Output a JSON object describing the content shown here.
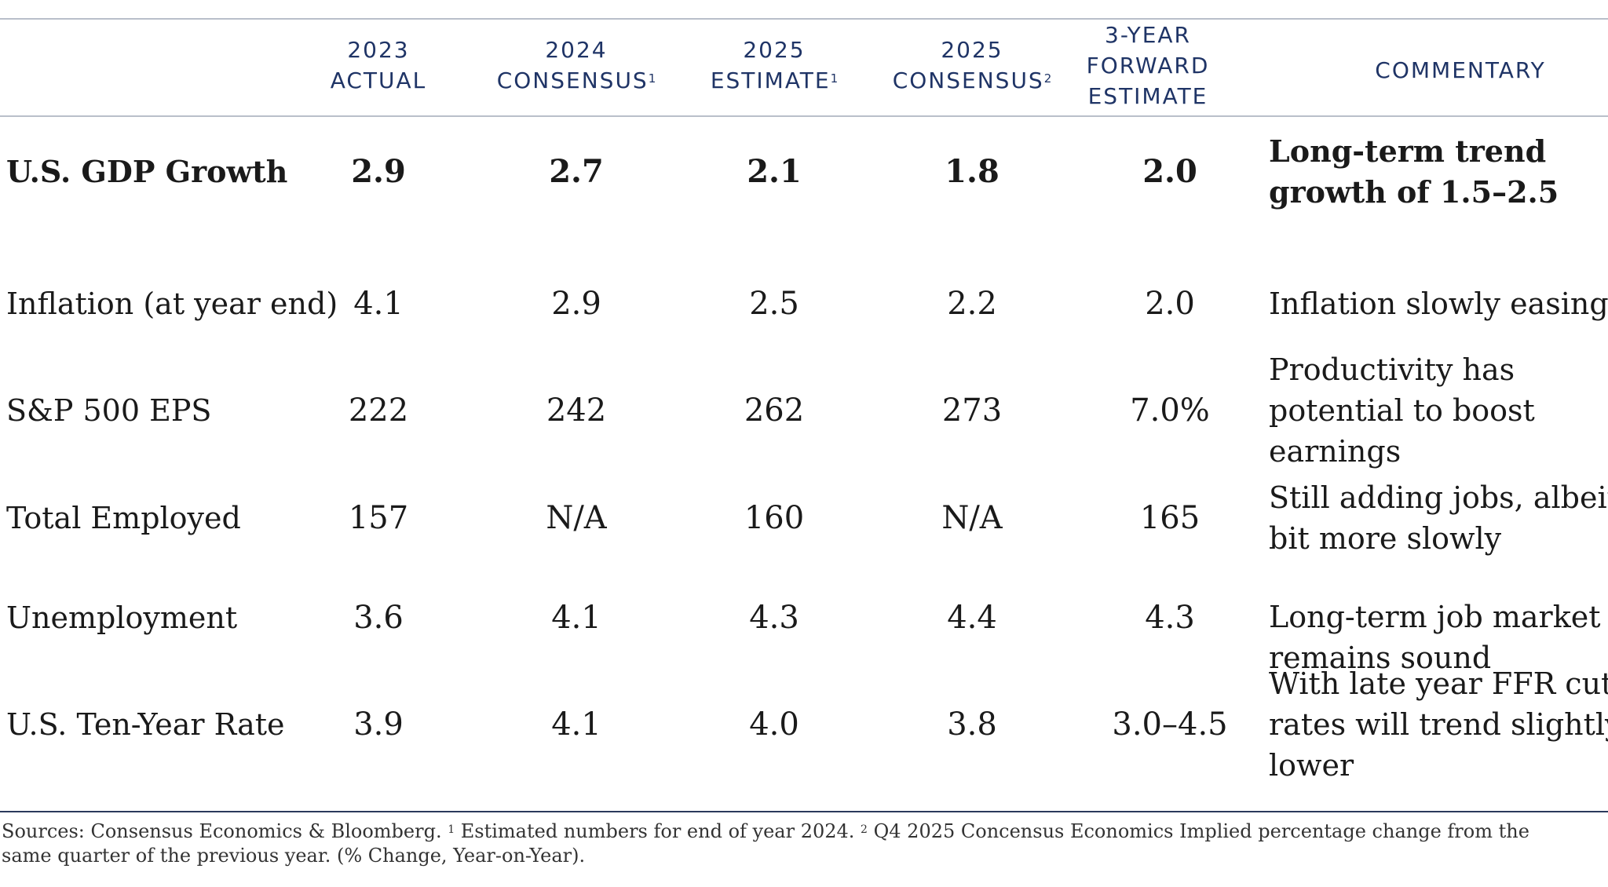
{
  "headers": [
    {
      "lines": [
        "2023",
        "ACTUAL"
      ],
      "sup": ""
    },
    {
      "lines": [
        "2024",
        "CONSENSUS"
      ],
      "sup": "1"
    },
    {
      "lines": [
        "2025",
        "ESTIMATE"
      ],
      "sup": "1"
    },
    {
      "lines": [
        "2025",
        "CONSENSUS"
      ],
      "sup": "2"
    },
    {
      "lines": [
        "3-YEAR",
        "FORWARD",
        "ESTIMATE"
      ],
      "sup": ""
    },
    {
      "lines": [
        "COMMENTARY"
      ],
      "sup": ""
    }
  ],
  "rows": [
    {
      "label": "U.S. GDP Growth",
      "values": [
        "2.9",
        "2.7",
        "2.1",
        "1.8",
        "2.0"
      ],
      "commentary": [
        "Long-term trend",
        "growth of 1.5–2.5"
      ],
      "bold": true
    },
    {
      "label": "Inflation (at year end)",
      "values": [
        "4.1",
        "2.9",
        "2.5",
        "2.2",
        "2.0"
      ],
      "commentary": [
        "Inflation slowly easing"
      ],
      "bold": false
    },
    {
      "label": "S&P 500 EPS",
      "values": [
        "222",
        "242",
        "262",
        "273",
        "7.0%"
      ],
      "commentary": [
        "Productivity has",
        "potential to boost",
        "earnings"
      ],
      "bold": false
    },
    {
      "label": "Total Employed",
      "values": [
        "157",
        "N/A",
        "160",
        "N/A",
        "165"
      ],
      "commentary": [
        "Still adding jobs, albeit a",
        "bit more slowly"
      ],
      "bold": false
    },
    {
      "label": "Unemployment",
      "values": [
        "3.6",
        "4.1",
        "4.3",
        "4.4",
        "4.3"
      ],
      "commentary": [
        "Long-term job market",
        "remains sound"
      ],
      "bold": false
    },
    {
      "label": "U.S. Ten-Year Rate",
      "values": [
        "3.9",
        "4.1",
        "4.0",
        "3.8",
        "3.0–4.5"
      ],
      "commentary": [
        "With late year FFR cuts,",
        "rates will trend slightly",
        "lower"
      ],
      "bold": false
    }
  ],
  "footnote": {
    "part1": "Sources: Consensus Economics & Bloomberg. ",
    "sup1": "1",
    "part2": " Estimated numbers for end of year 2024. ",
    "sup2": "2",
    "part3": " Q4 2025 Concensus Economics Implied percentage change from the",
    "line2": "same quarter of the previous year. (% Change, Year-on-Year)."
  }
}
